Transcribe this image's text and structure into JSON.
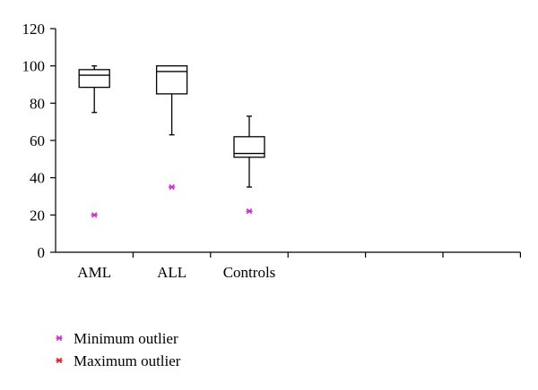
{
  "chart_data": {
    "type": "box",
    "title": "",
    "xlabel": "",
    "ylabel": "",
    "ylim": [
      0,
      120
    ],
    "yticks": [
      0,
      20,
      40,
      60,
      80,
      100,
      120
    ],
    "categories": [
      "AML",
      "ALL",
      "Controls"
    ],
    "empty_slots": 3,
    "boxes": [
      {
        "category": "AML",
        "whisker_low": 75,
        "q1": 88.5,
        "median": 95,
        "q3": 98,
        "whisker_high": 100,
        "min_outlier": 20
      },
      {
        "category": "ALL",
        "whisker_low": 63,
        "q1": 85,
        "median": 97,
        "q3": 100,
        "whisker_high": 100,
        "min_outlier": 35
      },
      {
        "category": "Controls",
        "whisker_low": 35,
        "q1": 51,
        "median": 53,
        "q3": 62,
        "whisker_high": 73,
        "min_outlier": 22
      }
    ],
    "legend": {
      "position": "bottom-left",
      "items": [
        {
          "label": "Minimum outlier",
          "marker": "asterisk",
          "color": "#cc33cc"
        },
        {
          "label": "Maximum outlier",
          "marker": "asterisk",
          "color": "#dd2222"
        }
      ]
    },
    "grid": false
  }
}
